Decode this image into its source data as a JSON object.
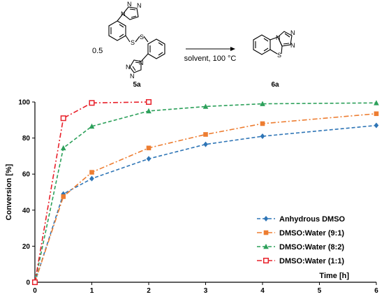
{
  "scheme": {
    "coefficient": "0.5",
    "conditions": "solvent, 100 °C",
    "reactant_label": "5a",
    "product_label": "6a",
    "atoms": {
      "N": "N",
      "S": "S"
    }
  },
  "chart_data": {
    "type": "line",
    "title": "",
    "xlabel": "Time  [h]",
    "ylabel": "Conversion [%]",
    "xlim": [
      0,
      6
    ],
    "ylim": [
      0,
      100
    ],
    "xticks": [
      0,
      1,
      2,
      3,
      4,
      5,
      6
    ],
    "yticks": [
      0,
      20,
      40,
      60,
      80,
      100
    ],
    "grid": false,
    "legend_position": "bottom-right",
    "series": [
      {
        "name": "Anhydrous DMSO",
        "color": "#2E75B6",
        "marker": "diamond",
        "dash": "dash",
        "x": [
          0,
          0.5,
          1,
          2,
          3,
          4,
          6
        ],
        "y": [
          0,
          49,
          57.5,
          68.5,
          76.5,
          81,
          87
        ]
      },
      {
        "name": "DMSO:Water (9:1)",
        "color": "#ED7D31",
        "marker": "square",
        "dash": "dashdot",
        "x": [
          0,
          0.5,
          1,
          2,
          3,
          4,
          6
        ],
        "y": [
          0,
          47.5,
          61,
          74.5,
          82,
          88,
          93.5
        ]
      },
      {
        "name": "DMSO:Water (8:2)",
        "color": "#2CA05A",
        "marker": "triangle",
        "dash": "dash",
        "x": [
          0,
          0.5,
          1,
          2,
          3,
          4,
          6
        ],
        "y": [
          0,
          74.5,
          86.5,
          95,
          97.5,
          99,
          99.5
        ]
      },
      {
        "name": "DMSO:Water (1:1)",
        "color": "#E8202A",
        "marker": "open-square",
        "dash": "dashdot",
        "x": [
          0,
          0.5,
          1,
          2
        ],
        "y": [
          0,
          91,
          99.5,
          100
        ]
      }
    ]
  }
}
